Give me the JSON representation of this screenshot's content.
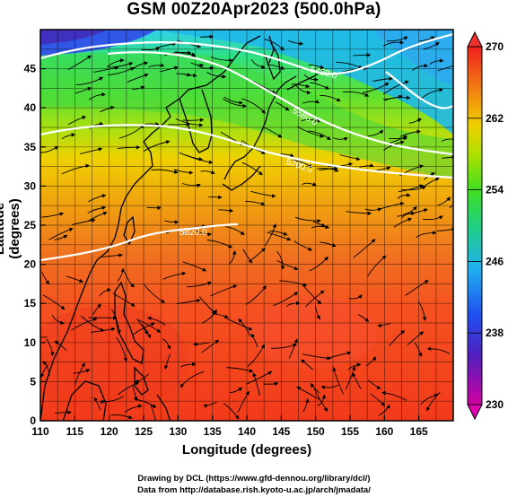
{
  "title": "GSM 00Z20Apr2023 (500.0hPa)",
  "xlabel": "Longitude (degrees)",
  "ylabel": "Latitude  (degrees)",
  "credits": [
    "Drawing by DCL (https://www.gfd-dennou.org/library/dcl/)",
    "Data from http://database.rish.kyoto-u.ac.jp/arch/jmadata/"
  ],
  "map": {
    "lon_range": [
      110,
      170
    ],
    "lat_range": [
      0,
      50
    ],
    "lon_ticks": [
      110,
      115,
      120,
      125,
      130,
      135,
      140,
      145,
      150,
      155,
      160,
      165
    ],
    "lat_ticks": [
      0,
      5,
      10,
      15,
      20,
      25,
      30,
      35,
      40,
      45
    ],
    "field": "temperature (K)",
    "contour_labels": [
      "5820.0",
      "5700.0",
      "5580.0",
      "5460.0"
    ]
  },
  "colorbar": {
    "labels": [
      "270",
      "262",
      "254",
      "246",
      "238",
      "230"
    ],
    "min": 230,
    "max": 270,
    "colors": [
      "#d60090",
      "#4a20c8",
      "#2050f0",
      "#20c0f0",
      "#20d080",
      "#30e020",
      "#a0e000",
      "#f0d000",
      "#f08010",
      "#ff4010",
      "#f03030"
    ]
  }
}
